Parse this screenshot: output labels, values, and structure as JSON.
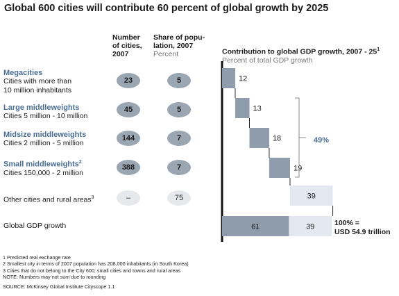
{
  "title": "Global 600 cities will contribute 60 percent of global growth by 2025",
  "columns": {
    "cities_header": [
      "Number",
      "of cities,",
      "2007"
    ],
    "pop_header": [
      "Share of popu-",
      "lation, 2007"
    ],
    "pop_sub": "Percent",
    "gdp_header": "Contribution to global GDP growth, 2007 - 25",
    "gdp_header_sup": "1",
    "gdp_sub": "Percent of total GDP growth"
  },
  "rows": [
    {
      "title": "Megacities",
      "title_sup": "",
      "desc": [
        "Cities with more than",
        "10 million inhabitants"
      ],
      "cities": "23",
      "pop": "5"
    },
    {
      "title": "Large middleweights",
      "title_sup": "",
      "desc": [
        "Cities 5 million - 10 million"
      ],
      "cities": "45",
      "pop": "5"
    },
    {
      "title": "Midsize middleweights",
      "title_sup": "",
      "desc": [
        "Cities 2 million - 5 million"
      ],
      "cities": "144",
      "pop": "7"
    },
    {
      "title": "Small middleweights",
      "title_sup": "2",
      "desc": [
        "Cities 150,000 - 2 million"
      ],
      "cities": "388",
      "pop": "7"
    }
  ],
  "other_row": {
    "label": "Other cities and rural areas",
    "label_sup": "3",
    "cities": "–",
    "pop": "75"
  },
  "total_row": {
    "label": "Global GDP growth",
    "total_label": [
      "100% =",
      "USD 54.9 trillion"
    ]
  },
  "bracket_label": "49%",
  "chart_data": {
    "type": "bar",
    "subtype": "waterfall",
    "title": "Contribution to global GDP growth, 2007 - 25",
    "ylabel": "Percent of total GDP growth",
    "categories": [
      "Megacities",
      "Large middleweights",
      "Midsize middleweights",
      "Small middleweights",
      "Other cities and rural areas",
      "Global GDP growth"
    ],
    "values": [
      12,
      13,
      18,
      19,
      39,
      100
    ],
    "total_split": [
      61,
      39
    ],
    "xlim": [
      0,
      100
    ],
    "colors": {
      "dark": "#8f9cab",
      "light": "#e4e9f1"
    }
  },
  "footnotes": [
    "1 Predicted real exchange rate",
    "2 Smallest city in terms of 2007 population has 208,000 inhabitants (in South Korea)",
    "3 Cities that do not belong to the City 600; small cities and towns and rural areas",
    "NOTE: Numbers may not sum due to rounding"
  ],
  "source": "SOURCE: McKinsey Global Institute Cityscope 1.1"
}
